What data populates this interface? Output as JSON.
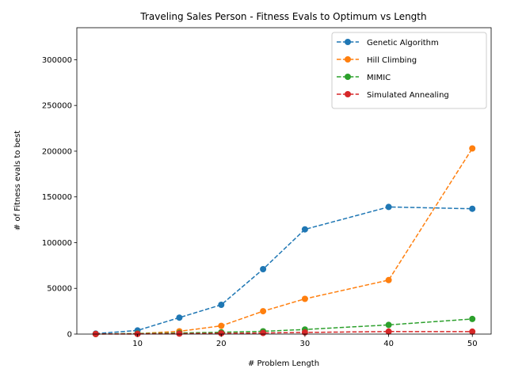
{
  "chart_data": {
    "type": "line",
    "title": "Traveling Sales Person - Fitness Evals to Optimum vs Length",
    "xlabel": "# Problem Length",
    "ylabel": "# of Fitness evals to best",
    "xlim": [
      2.75,
      52.25
    ],
    "ylim": [
      0,
      335000
    ],
    "xticks": [
      10,
      20,
      30,
      40,
      50
    ],
    "yticks": [
      0,
      50000,
      100000,
      150000,
      200000,
      250000,
      300000
    ],
    "grid": false,
    "legend_position": "top-right",
    "x": [
      5,
      10,
      15,
      20,
      25,
      30,
      40,
      50
    ],
    "series": [
      {
        "name": "Genetic Algorithm",
        "color": "#1f77b4",
        "values": [
          500,
          4000,
          18000,
          32000,
          71000,
          114500,
          139000,
          137000
        ]
      },
      {
        "name": "Hill Climbing",
        "color": "#ff7f0e",
        "values": [
          100,
          500,
          3000,
          9000,
          25000,
          38500,
          59000,
          203000
        ]
      },
      {
        "name": "MIMIC",
        "color": "#2ca02c",
        "values": [
          100,
          500,
          1200,
          2000,
          3000,
          5000,
          10000,
          16500
        ]
      },
      {
        "name": "Simulated Annealing",
        "color": "#d62728",
        "values": [
          50,
          200,
          500,
          800,
          1200,
          1800,
          2800,
          2700
        ]
      }
    ]
  }
}
